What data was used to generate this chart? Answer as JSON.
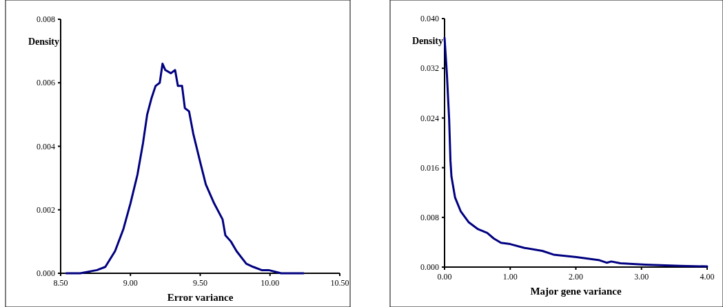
{
  "chart_data": [
    {
      "type": "line",
      "xlabel": "Error variance",
      "ylabel": "Density",
      "xlim": [
        8.5,
        10.5
      ],
      "xticks": [
        {
          "value": 8.5,
          "label": "8.50"
        },
        {
          "value": 9,
          "label": "9.00"
        },
        {
          "value": 9.5,
          "label": "9.50"
        },
        {
          "value": 10,
          "label": "10.00"
        },
        {
          "value": 10.5,
          "label": "10.50"
        }
      ],
      "ylim": [
        0,
        0.008
      ],
      "yticks": [
        {
          "value": 0,
          "label": "0.000"
        },
        {
          "value": 0.002,
          "label": "0.002"
        },
        {
          "value": 0.004,
          "label": "0.004"
        },
        {
          "value": 0.006,
          "label": "0.006"
        },
        {
          "value": 0.008,
          "label": "0.008"
        }
      ],
      "grid": false,
      "marker": "none",
      "line_style": "solid",
      "series": [
        {
          "color": "#000080",
          "x": [
            8.54,
            8.64,
            8.76,
            8.82,
            8.89,
            8.95,
            9.0,
            9.05,
            9.09,
            9.12,
            9.15,
            9.18,
            9.21,
            9.23,
            9.25,
            9.29,
            9.32,
            9.34,
            9.37,
            9.39,
            9.42,
            9.45,
            9.5,
            9.54,
            9.6,
            9.66,
            9.68,
            9.72,
            9.76,
            9.83,
            9.88,
            9.94,
            9.99,
            10.08,
            10.24
          ],
          "values": [
            0.0,
            0.0,
            0.0001,
            0.0002,
            0.0007,
            0.0014,
            0.0022,
            0.0031,
            0.0041,
            0.005,
            0.0055,
            0.0059,
            0.006,
            0.0066,
            0.0064,
            0.0063,
            0.0064,
            0.0059,
            0.0059,
            0.0052,
            0.0051,
            0.0044,
            0.0035,
            0.0028,
            0.0022,
            0.0017,
            0.0012,
            0.001,
            0.0007,
            0.0003,
            0.0002,
            0.0001,
            0.0001,
            0.0,
            0.0
          ]
        }
      ]
    },
    {
      "type": "line",
      "xlabel": "Major gene variance",
      "ylabel": "Density",
      "xlim": [
        0,
        4
      ],
      "xticks": [
        {
          "value": 0,
          "label": "0.00"
        },
        {
          "value": 1,
          "label": "1.00"
        },
        {
          "value": 2,
          "label": "2.00"
        },
        {
          "value": 3,
          "label": "3.00"
        },
        {
          "value": 4,
          "label": "4.00"
        }
      ],
      "ylim": [
        0,
        0.04
      ],
      "yticks": [
        {
          "value": 0,
          "label": "0.000"
        },
        {
          "value": 0.008,
          "label": "0.008"
        },
        {
          "value": 0.016,
          "label": "0.016"
        },
        {
          "value": 0.024,
          "label": "0.024"
        },
        {
          "value": 0.032,
          "label": "0.032"
        },
        {
          "value": 0.04,
          "label": "0.040"
        }
      ],
      "grid": false,
      "marker": "none",
      "line_style": "solid",
      "series": [
        {
          "color": "#000080",
          "x": [
            0.0,
            0.035,
            0.07,
            0.09,
            0.105,
            0.16,
            0.245,
            0.37,
            0.51,
            0.65,
            0.75,
            0.86,
            1.0,
            1.21,
            1.49,
            1.66,
            2.01,
            2.36,
            2.47,
            2.54,
            2.68,
            3.06,
            3.59,
            4.0
          ],
          "values": [
            0.0369,
            0.0312,
            0.0238,
            0.0171,
            0.0146,
            0.0112,
            0.009,
            0.0072,
            0.0061,
            0.0055,
            0.0046,
            0.0039,
            0.0037,
            0.0031,
            0.0026,
            0.002,
            0.0016,
            0.0011,
            0.0007,
            0.0009,
            0.0006,
            0.0004,
            0.0002,
            0.0001
          ]
        }
      ]
    }
  ]
}
